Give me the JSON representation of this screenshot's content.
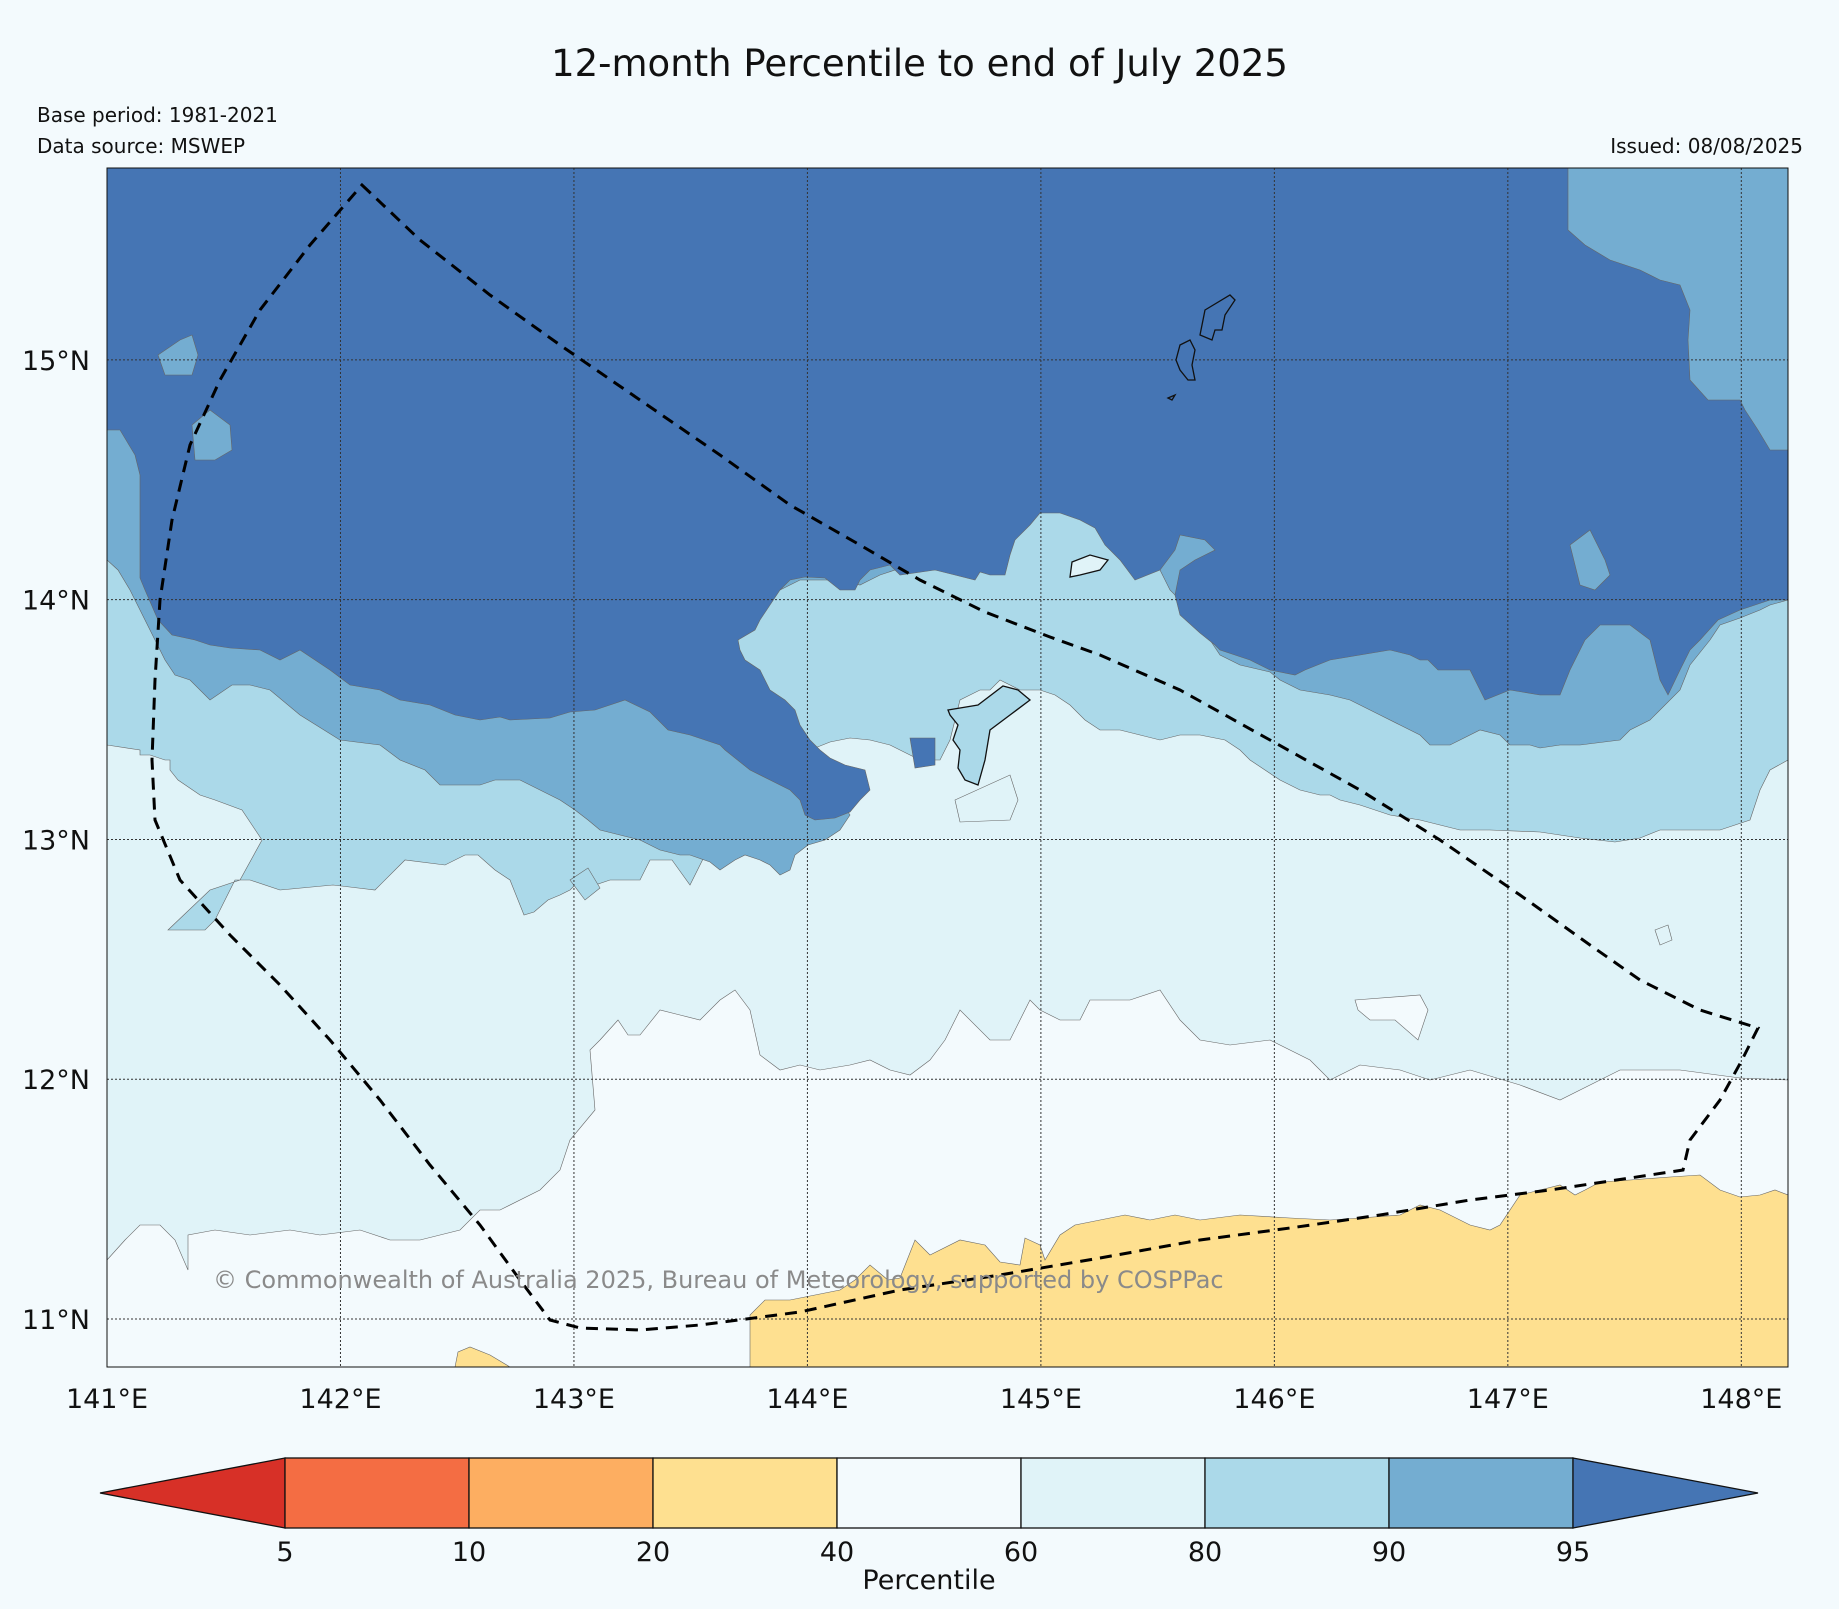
{
  "title": "12-month Percentile to end of July 2025",
  "meta": {
    "base_period": "Base period: 1981-2021",
    "data_source": "Data source: MSWEP",
    "issued": "Issued: 08/08/2025"
  },
  "copyright": "© Commonwealth of Australia 2025, Bureau of Meteorology, supported by COSPPac",
  "axes": {
    "x_ticks": [
      {
        "value": 141,
        "label": "141°E"
      },
      {
        "value": 142,
        "label": "142°E"
      },
      {
        "value": 143,
        "label": "143°E"
      },
      {
        "value": 144,
        "label": "144°E"
      },
      {
        "value": 145,
        "label": "145°E"
      },
      {
        "value": 146,
        "label": "146°E"
      },
      {
        "value": 147,
        "label": "147°E"
      },
      {
        "value": 148,
        "label": "148°E"
      }
    ],
    "y_ticks": [
      {
        "value": 15,
        "label": "15°N"
      },
      {
        "value": 14,
        "label": "14°N"
      },
      {
        "value": 13,
        "label": "13°N"
      },
      {
        "value": 12,
        "label": "12°N"
      },
      {
        "value": 11,
        "label": "11°N"
      }
    ],
    "lon_range": [
      141.0,
      148.2
    ],
    "lat_range": [
      10.8,
      15.8
    ]
  },
  "legend": {
    "title": "Percentile",
    "ticks": [
      "5",
      "10",
      "20",
      "40",
      "60",
      "80",
      "90",
      "95"
    ],
    "bins": [
      {
        "range": "<5",
        "color": "#d73027"
      },
      {
        "range": "5-10",
        "color": "#f46d43"
      },
      {
        "range": "10-20",
        "color": "#fdae61"
      },
      {
        "range": "20-40",
        "color": "#fee090"
      },
      {
        "range": "40-60",
        "color": "#f3fafd"
      },
      {
        "range": "60-80",
        "color": "#e0f3f8"
      },
      {
        "range": "80-90",
        "color": "#abd9e9"
      },
      {
        "range": "90-95",
        "color": "#74add1"
      },
      {
        "range": ">95",
        "color": "#4575b4"
      }
    ]
  }
}
